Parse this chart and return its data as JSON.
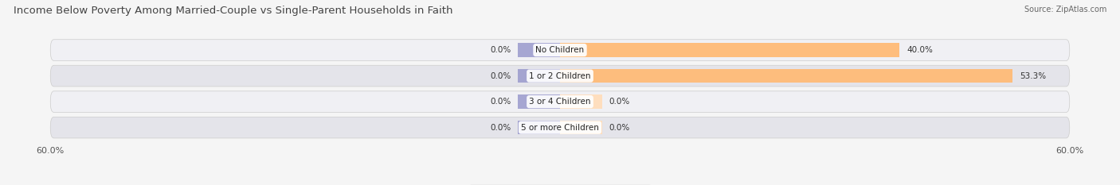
{
  "title": "Income Below Poverty Among Married-Couple vs Single-Parent Households in Faith",
  "source": "Source: ZipAtlas.com",
  "categories": [
    "No Children",
    "1 or 2 Children",
    "3 or 4 Children",
    "5 or more Children"
  ],
  "married_values": [
    0.0,
    0.0,
    0.0,
    0.0
  ],
  "single_values": [
    40.0,
    53.3,
    0.0,
    0.0
  ],
  "married_stub": 5.0,
  "axis_min": -60.0,
  "axis_max": 60.0,
  "axis_label_left": "60.0%",
  "axis_label_right": "60.0%",
  "married_color": "#9999cc",
  "single_color": "#ffbb77",
  "single_stub_color": "#ffddbb",
  "row_bg_even": "#f0f0f4",
  "row_bg_odd": "#e4e4ea",
  "title_fontsize": 9.5,
  "label_fontsize": 7.5,
  "value_fontsize": 7.5,
  "tick_fontsize": 8,
  "source_fontsize": 7,
  "title_color": "#444444",
  "source_color": "#666666",
  "label_color": "#222222",
  "value_color": "#333333"
}
